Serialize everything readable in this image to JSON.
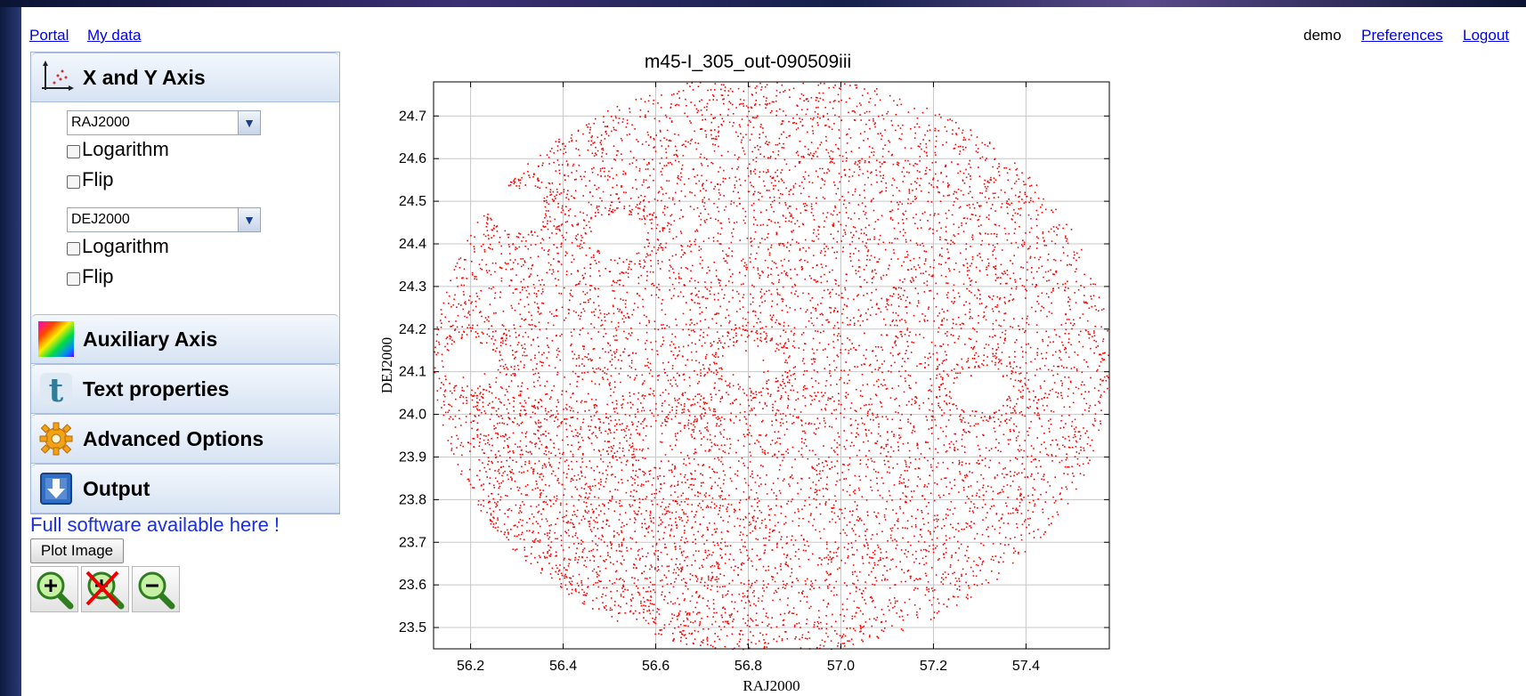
{
  "header": {
    "links": [
      "Portal",
      "My data"
    ],
    "user": "demo",
    "user_links": [
      "Preferences",
      "Logout"
    ]
  },
  "panel": {
    "sections": [
      {
        "label": "X and Y Axis",
        "icon": "xy-axis-icon"
      },
      {
        "label": "Auxiliary Axis",
        "icon": "color-gradient-icon"
      },
      {
        "label": "Text properties",
        "icon": "text-t-icon"
      },
      {
        "label": "Advanced Options",
        "icon": "gear-icon"
      },
      {
        "label": "Output",
        "icon": "download-arrow-icon"
      }
    ],
    "x_axis": {
      "column": "RAJ2000",
      "log_label": "Logarithm",
      "flip_label": "Flip",
      "log_checked": false,
      "flip_checked": false
    },
    "y_axis": {
      "column": "DEJ2000",
      "log_label": "Logarithm",
      "flip_label": "Flip",
      "log_checked": false,
      "flip_checked": false
    }
  },
  "full_software": "Full software available here !",
  "plot_button": "Plot Image",
  "zoom_buttons": [
    "zoom-in-icon",
    "zoom-reset-icon",
    "zoom-out-icon"
  ],
  "chart_data": {
    "type": "scatter",
    "title": "m45-I_305_out-090509iii",
    "xlabel": "RAJ2000",
    "ylabel": "DEJ2000",
    "xlim": [
      56.12,
      57.58
    ],
    "ylim": [
      23.45,
      24.78
    ],
    "xticks": [
      "56.2",
      "56.4",
      "56.6",
      "56.8",
      "57.0",
      "57.2",
      "57.4"
    ],
    "yticks": [
      "23.5",
      "23.6",
      "23.7",
      "23.8",
      "23.9",
      "24.0",
      "24.1",
      "24.2",
      "24.3",
      "24.4",
      "24.5",
      "24.6",
      "24.7"
    ],
    "grid": true,
    "point_color": "#ff0000",
    "field_center": [
      56.85,
      24.12
    ],
    "field_radius_ra": 0.73,
    "field_radius_dec": 0.68,
    "cavities": [
      [
        56.8,
        24.12
      ],
      [
        57.3,
        24.06
      ],
      [
        56.2,
        24.12
      ],
      [
        56.52,
        24.42
      ],
      [
        56.62,
        23.93
      ],
      [
        56.3,
        24.48
      ]
    ]
  }
}
